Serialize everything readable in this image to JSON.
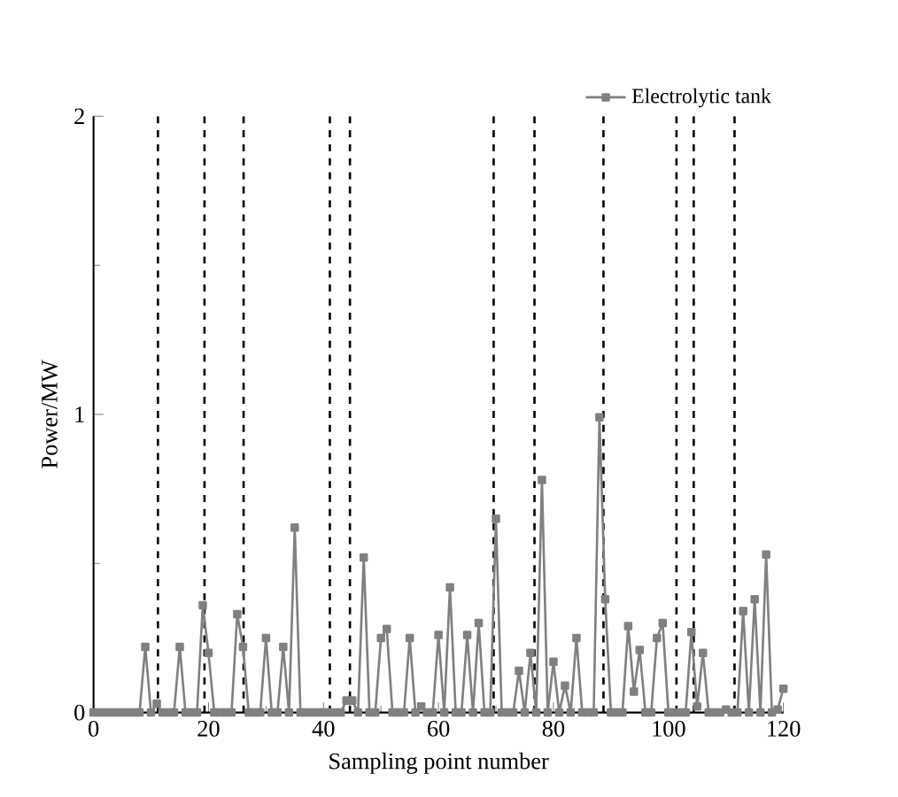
{
  "chart_data": {
    "type": "line",
    "xlabel": "Sampling point number",
    "ylabel": "Power/MW",
    "xlim": [
      0,
      120
    ],
    "xticks": [
      0,
      20,
      40,
      60,
      80,
      100,
      120
    ],
    "ylim": [
      0,
      2
    ],
    "yticks": [
      0,
      1,
      2
    ],
    "x": [
      0,
      1,
      2,
      3,
      4,
      5,
      6,
      7,
      8,
      9,
      10,
      11,
      12,
      13,
      14,
      15,
      16,
      17,
      18,
      19,
      20,
      21,
      22,
      23,
      24,
      25,
      26,
      27,
      28,
      29,
      30,
      31,
      32,
      33,
      34,
      35,
      36,
      37,
      38,
      39,
      40,
      41,
      42,
      43,
      44,
      45,
      46,
      47,
      48,
      49,
      50,
      51,
      52,
      53,
      54,
      55,
      56,
      57,
      58,
      59,
      60,
      61,
      62,
      63,
      64,
      65,
      66,
      67,
      68,
      69,
      70,
      71,
      72,
      73,
      74,
      75,
      76,
      77,
      78,
      79,
      80,
      81,
      82,
      83,
      84,
      85,
      86,
      87,
      88,
      89,
      90,
      91,
      92,
      93,
      94,
      95,
      96,
      97,
      98,
      99,
      100,
      101,
      102,
      103,
      104,
      105,
      106,
      107,
      108,
      109,
      110,
      111,
      112,
      113,
      114,
      115,
      116,
      117,
      118,
      119,
      120
    ],
    "series": [
      {
        "name": "Electrolytic tank",
        "color": "#808080",
        "values": [
          0,
          0,
          0,
          0,
          0,
          0,
          0,
          0,
          0,
          0.22,
          0,
          0.03,
          0,
          0,
          0,
          0.22,
          0,
          0,
          0,
          0.36,
          0.2,
          0,
          0,
          0,
          0,
          0.33,
          0.22,
          0,
          0,
          0,
          0.25,
          0,
          0,
          0.22,
          0,
          0.62,
          0,
          0,
          0,
          0,
          0,
          0,
          0,
          0,
          0.04,
          0.04,
          0,
          0.52,
          0,
          0,
          0.25,
          0.28,
          0,
          0,
          0,
          0.25,
          0,
          0.02,
          0,
          0,
          0.26,
          0,
          0.42,
          0,
          0,
          0.26,
          0,
          0.3,
          0,
          0,
          0.65,
          0,
          0,
          0,
          0.14,
          0,
          0.2,
          0,
          0.78,
          0,
          0.17,
          0,
          0.09,
          0,
          0.25,
          0,
          0,
          0,
          0.99,
          0.38,
          0,
          0,
          0,
          0.29,
          0.07,
          0.21,
          0,
          0,
          0.25,
          0.3,
          0,
          0,
          0,
          0,
          0.27,
          0.02,
          0.2,
          0,
          0,
          0,
          0.01,
          0,
          0,
          0.34,
          0,
          0.38,
          0,
          0.53,
          0,
          0.01,
          0.08
        ]
      }
    ],
    "ref_lines": [
      {
        "axis": "x",
        "value": 11.2,
        "color": "#000000",
        "line_style": "dashed"
      },
      {
        "axis": "x",
        "value": 19.3,
        "color": "#000000",
        "line_style": "dashed"
      },
      {
        "axis": "x",
        "value": 26.1,
        "color": "#000000",
        "line_style": "dashed"
      },
      {
        "axis": "x",
        "value": 41.1,
        "color": "#000000",
        "line_style": "dashed"
      },
      {
        "axis": "x",
        "value": 44.6,
        "color": "#000000",
        "line_style": "dashed"
      },
      {
        "axis": "x",
        "value": 69.6,
        "color": "#000000",
        "line_style": "dashed"
      },
      {
        "axis": "x",
        "value": 76.7,
        "color": "#000000",
        "line_style": "dashed"
      },
      {
        "axis": "x",
        "value": 88.7,
        "color": "#000000",
        "line_style": "dashed"
      },
      {
        "axis": "x",
        "value": 101.4,
        "color": "#000000",
        "line_style": "dashed"
      },
      {
        "axis": "x",
        "value": 104.4,
        "color": "#000000",
        "line_style": "dashed"
      },
      {
        "axis": "x",
        "value": 111.5,
        "color": "#000000",
        "line_style": "dashed"
      }
    ],
    "grid": false,
    "legend": "top right",
    "marker": "square",
    "line_style": "solid"
  }
}
